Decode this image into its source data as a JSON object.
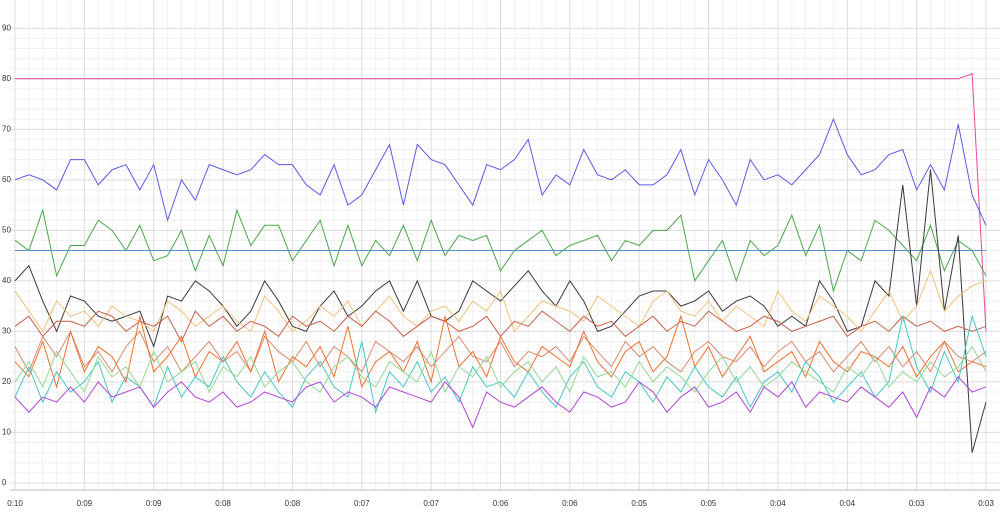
{
  "chart_data": {
    "type": "line",
    "categories": [
      "0:10",
      null,
      null,
      null,
      null,
      "0:09",
      null,
      null,
      null,
      null,
      "0:09",
      null,
      null,
      null,
      null,
      "0:08",
      null,
      null,
      null,
      null,
      "0:08",
      null,
      null,
      null,
      null,
      "0:07",
      null,
      null,
      null,
      null,
      "0:07",
      null,
      null,
      null,
      null,
      "0:06",
      null,
      null,
      null,
      null,
      "0:06",
      null,
      null,
      null,
      null,
      "0:05",
      null,
      null,
      null,
      null,
      "0:05",
      null,
      null,
      null,
      null,
      "0:04",
      null,
      null,
      null,
      null,
      "0:04",
      null,
      null,
      null,
      null,
      "0:03",
      null,
      null,
      null,
      null,
      "0:03"
    ],
    "ylim": [
      -1.4,
      95.6
    ],
    "yticks": [
      0,
      10,
      20,
      30,
      40,
      50,
      60,
      70,
      80,
      90
    ],
    "grid": true,
    "minor_grid": true,
    "series": [
      {
        "color": "#e8489c",
        "values": [
          80,
          80,
          80,
          80,
          80,
          80,
          80,
          80,
          80,
          80,
          80,
          80,
          80,
          80,
          80,
          80,
          80,
          80,
          80,
          80,
          80,
          80,
          80,
          80,
          80,
          80,
          80,
          80,
          80,
          80,
          80,
          80,
          80,
          80,
          80,
          80,
          80,
          80,
          80,
          80,
          80,
          80,
          80,
          80,
          80,
          80,
          80,
          80,
          80,
          80,
          80,
          80,
          80,
          80,
          80,
          80,
          80,
          80,
          80,
          80,
          80,
          80,
          80,
          80,
          80,
          80,
          80,
          80,
          80,
          81,
          30
        ]
      },
      {
        "color": "#5a5ae6",
        "values": [
          60,
          61,
          60,
          58,
          64,
          64,
          59,
          62,
          63,
          58,
          63,
          52,
          60,
          56,
          63,
          62,
          61,
          62,
          65,
          63,
          63,
          59,
          57,
          63,
          55,
          57,
          62,
          67,
          55,
          67,
          64,
          63,
          59,
          55,
          63,
          62,
          64,
          68,
          57,
          61,
          59,
          66,
          61,
          60,
          62,
          59,
          59,
          61,
          66,
          57,
          64,
          60,
          55,
          64,
          60,
          61,
          59,
          62,
          65,
          72,
          65,
          61,
          62,
          65,
          66,
          58,
          63,
          58,
          71,
          57,
          51
        ]
      },
      {
        "color": "#4aa84a",
        "values": [
          48,
          46,
          54,
          41,
          47,
          47,
          52,
          50,
          46,
          51,
          44,
          45,
          50,
          42,
          49,
          43,
          54,
          47,
          51,
          51,
          44,
          48,
          52,
          43,
          51,
          43,
          48,
          45,
          51,
          44,
          52,
          45,
          49,
          48,
          49,
          42,
          46,
          48,
          50,
          45,
          47,
          48,
          49,
          44,
          48,
          47,
          50,
          50,
          53,
          40,
          44,
          48,
          40,
          48,
          45,
          47,
          53,
          45,
          51,
          38,
          46,
          44,
          52,
          50,
          47,
          44,
          51,
          42,
          48,
          46,
          41
        ]
      },
      {
        "color": "#5b8fd0",
        "values": [
          46,
          46,
          46,
          46,
          46,
          46,
          46,
          46,
          46,
          46,
          46,
          46,
          46,
          46,
          46,
          46,
          46,
          46,
          46,
          46,
          46,
          46,
          46,
          46,
          46,
          46,
          46,
          46,
          46,
          46,
          46,
          46,
          46,
          46,
          46,
          46,
          46,
          46,
          46,
          46,
          46,
          46,
          46,
          46,
          46,
          46,
          46,
          46,
          46,
          46,
          46,
          46,
          46,
          46,
          46,
          46,
          46,
          46,
          46,
          46,
          46,
          46,
          46,
          46,
          46,
          46,
          46,
          46,
          46,
          46,
          46
        ]
      },
      {
        "color": "#3a3a3a",
        "values": [
          40,
          43,
          36,
          30,
          37,
          36,
          33,
          32,
          33,
          34,
          27,
          37,
          36,
          40,
          38,
          35,
          31,
          34,
          40,
          36,
          31,
          30,
          35,
          38,
          33,
          35,
          38,
          40,
          34,
          40,
          33,
          32,
          34,
          40,
          38,
          36,
          39,
          42,
          38,
          35,
          40,
          36,
          30,
          31,
          34,
          37,
          38,
          38,
          35,
          36,
          38,
          34,
          36,
          37,
          35,
          31,
          33,
          31,
          40,
          36,
          30,
          31,
          40,
          37,
          59,
          35,
          62,
          34,
          49,
          6,
          16
        ]
      },
      {
        "color": "#f2c27a",
        "values": [
          38,
          34,
          30,
          36,
          33,
          34,
          31,
          35,
          33,
          32,
          30,
          36,
          34,
          31,
          33,
          35,
          32,
          30,
          37,
          34,
          30,
          32,
          35,
          33,
          36,
          31,
          34,
          37,
          33,
          31,
          34,
          35,
          32,
          36,
          34,
          38,
          30,
          33,
          36,
          35,
          34,
          32,
          37,
          35,
          33,
          31,
          36,
          38,
          34,
          33,
          36,
          32,
          35,
          33,
          31,
          38,
          34,
          32,
          37,
          35,
          33,
          30,
          34,
          38,
          32,
          35,
          42,
          34,
          37,
          39,
          40
        ]
      },
      {
        "color": "#c8604a",
        "values": [
          31,
          33,
          29,
          32,
          32,
          31,
          34,
          33,
          30,
          32,
          31,
          33,
          28,
          34,
          31,
          33,
          30,
          32,
          31,
          29,
          33,
          31,
          32,
          30,
          33,
          31,
          34,
          32,
          29,
          31,
          33,
          32,
          30,
          31,
          33,
          29,
          32,
          31,
          34,
          32,
          30,
          33,
          31,
          32,
          29,
          31,
          33,
          30,
          32,
          31,
          34,
          32,
          30,
          31,
          33,
          32,
          30,
          31,
          32,
          33,
          29,
          31,
          32,
          30,
          33,
          31,
          32,
          30,
          31,
          30,
          31
        ]
      },
      {
        "color": "#d98a72",
        "values": [
          27,
          22,
          29,
          25,
          30,
          23,
          26,
          22,
          27,
          30,
          24,
          27,
          22,
          25,
          28,
          24,
          26,
          22,
          29,
          26,
          24,
          28,
          23,
          27,
          25,
          22,
          28,
          26,
          24,
          27,
          23,
          26,
          29,
          25,
          24,
          28,
          23,
          26,
          25,
          27,
          24,
          29,
          26,
          23,
          28,
          25,
          27,
          24,
          22,
          26,
          28,
          25,
          24,
          27,
          23,
          26,
          28,
          24,
          26,
          22,
          25,
          28,
          24,
          27,
          23,
          26,
          22,
          28,
          25,
          24,
          26
        ]
      },
      {
        "color": "#f07030",
        "values": [
          24,
          21,
          28,
          19,
          30,
          22,
          27,
          25,
          20,
          33,
          22,
          25,
          29,
          21,
          26,
          24,
          28,
          22,
          30,
          20,
          25,
          23,
          27,
          21,
          31,
          19,
          24,
          26,
          22,
          28,
          20,
          33,
          23,
          26,
          21,
          29,
          24,
          22,
          27,
          25,
          23,
          30,
          24,
          21,
          26,
          28,
          22,
          25,
          33,
          23,
          27,
          21,
          25,
          29,
          22,
          24,
          26,
          21,
          28,
          24,
          22,
          26,
          25,
          23,
          27,
          21,
          25,
          28,
          22,
          24,
          23
        ]
      },
      {
        "color": "#46c6c6",
        "values": [
          17,
          23,
          16,
          22,
          18,
          20,
          24,
          16,
          21,
          19,
          15,
          23,
          17,
          21,
          19,
          25,
          20,
          17,
          22,
          18,
          15,
          21,
          24,
          19,
          17,
          28,
          14,
          22,
          19,
          24,
          18,
          21,
          16,
          23,
          19,
          20,
          17,
          22,
          18,
          15,
          21,
          24,
          19,
          17,
          22,
          20,
          16,
          21,
          18,
          23,
          19,
          17,
          21,
          15,
          20,
          22,
          18,
          24,
          21,
          16,
          19,
          22,
          17,
          20,
          33,
          23,
          18,
          26,
          20,
          33,
          25
        ]
      },
      {
        "color": "#94d894",
        "values": [
          20,
          24,
          19,
          26,
          22,
          18,
          25,
          21,
          23,
          19,
          26,
          20,
          22,
          24,
          18,
          23,
          21,
          25,
          19,
          22,
          24,
          20,
          18,
          23,
          25,
          21,
          19,
          24,
          22,
          20,
          26,
          18,
          23,
          21,
          25,
          19,
          22,
          24,
          20,
          23,
          18,
          25,
          21,
          22,
          19,
          24,
          20,
          23,
          21,
          18,
          22,
          25,
          20,
          23,
          19,
          21,
          24,
          22,
          20,
          18,
          23,
          21,
          25,
          19,
          22,
          20,
          24,
          21,
          23,
          27,
          22
        ]
      },
      {
        "color": "#b044d8",
        "values": [
          17,
          14,
          17,
          16,
          19,
          16,
          20,
          17,
          18,
          19,
          15,
          18,
          20,
          17,
          16,
          18,
          15,
          16,
          18,
          17,
          16,
          19,
          20,
          16,
          18,
          17,
          15,
          19,
          18,
          17,
          16,
          20,
          17,
          11,
          18,
          16,
          15,
          17,
          19,
          16,
          14,
          18,
          17,
          15,
          16,
          20,
          18,
          14,
          17,
          19,
          15,
          16,
          18,
          14,
          19,
          17,
          20,
          15,
          18,
          17,
          16,
          19,
          17,
          15,
          18,
          13,
          19,
          17,
          21,
          18,
          19
        ]
      }
    ]
  }
}
